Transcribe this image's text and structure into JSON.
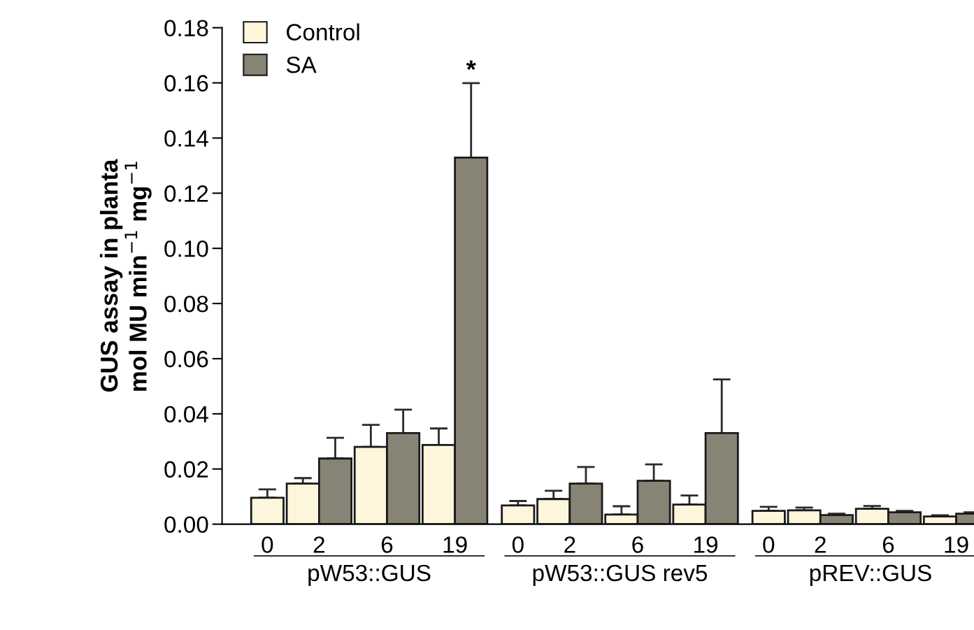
{
  "chart_data": {
    "type": "bar",
    "ylabel": "GUS assay in planta\nmol MU min$^{−1}$ mg$^{−1}$",
    "categories": [
      "0",
      "2",
      "6",
      "19",
      "0",
      "2",
      "6",
      "19",
      "0",
      "2",
      "6",
      "19"
    ],
    "series": [
      {
        "name": "Control",
        "color": "#fdf6dc",
        "values": [
          0.0096,
          0.0147,
          0.028,
          0.0287,
          0.0068,
          0.0091,
          0.0035,
          0.0071,
          0.0048,
          0.005,
          0.0056,
          0.0028
        ],
        "errors": [
          0.003,
          0.002,
          0.008,
          0.006,
          0.0016,
          0.003,
          0.003,
          0.0033,
          0.0015,
          0.001,
          0.001,
          0.0004
        ]
      },
      {
        "name": "SA",
        "color": "#878475",
        "values": [
          null,
          0.0238,
          0.033,
          0.1329,
          null,
          0.0147,
          0.0157,
          0.033,
          null,
          0.0033,
          0.0043,
          0.0038
        ],
        "errors": [
          null,
          0.0075,
          0.0085,
          0.027,
          null,
          0.006,
          0.006,
          0.0195,
          null,
          0.0005,
          0.0005,
          0.0005
        ]
      }
    ],
    "ylim": [
      0,
      0.18
    ],
    "yticks": [
      {
        "value": 0,
        "label": "0.00"
      },
      {
        "value": 0.02,
        "label": "0.02"
      },
      {
        "value": 0.04,
        "label": "0.04"
      },
      {
        "value": 0.06,
        "label": "0.06"
      },
      {
        "value": 0.08,
        "label": "0.08"
      },
      {
        "value": 0.1,
        "label": "0.10"
      },
      {
        "value": 0.12,
        "label": "0.12"
      },
      {
        "value": 0.14,
        "label": "0.14"
      },
      {
        "value": 0.16,
        "label": "0.16"
      },
      {
        "value": 0.18,
        "label": "0.18"
      }
    ],
    "annotations": [
      "*",
      "pW53::GUS",
      "pW53::GUS rev5",
      "pREV::GUS"
    ],
    "legend": "top left",
    "grid": false
  }
}
